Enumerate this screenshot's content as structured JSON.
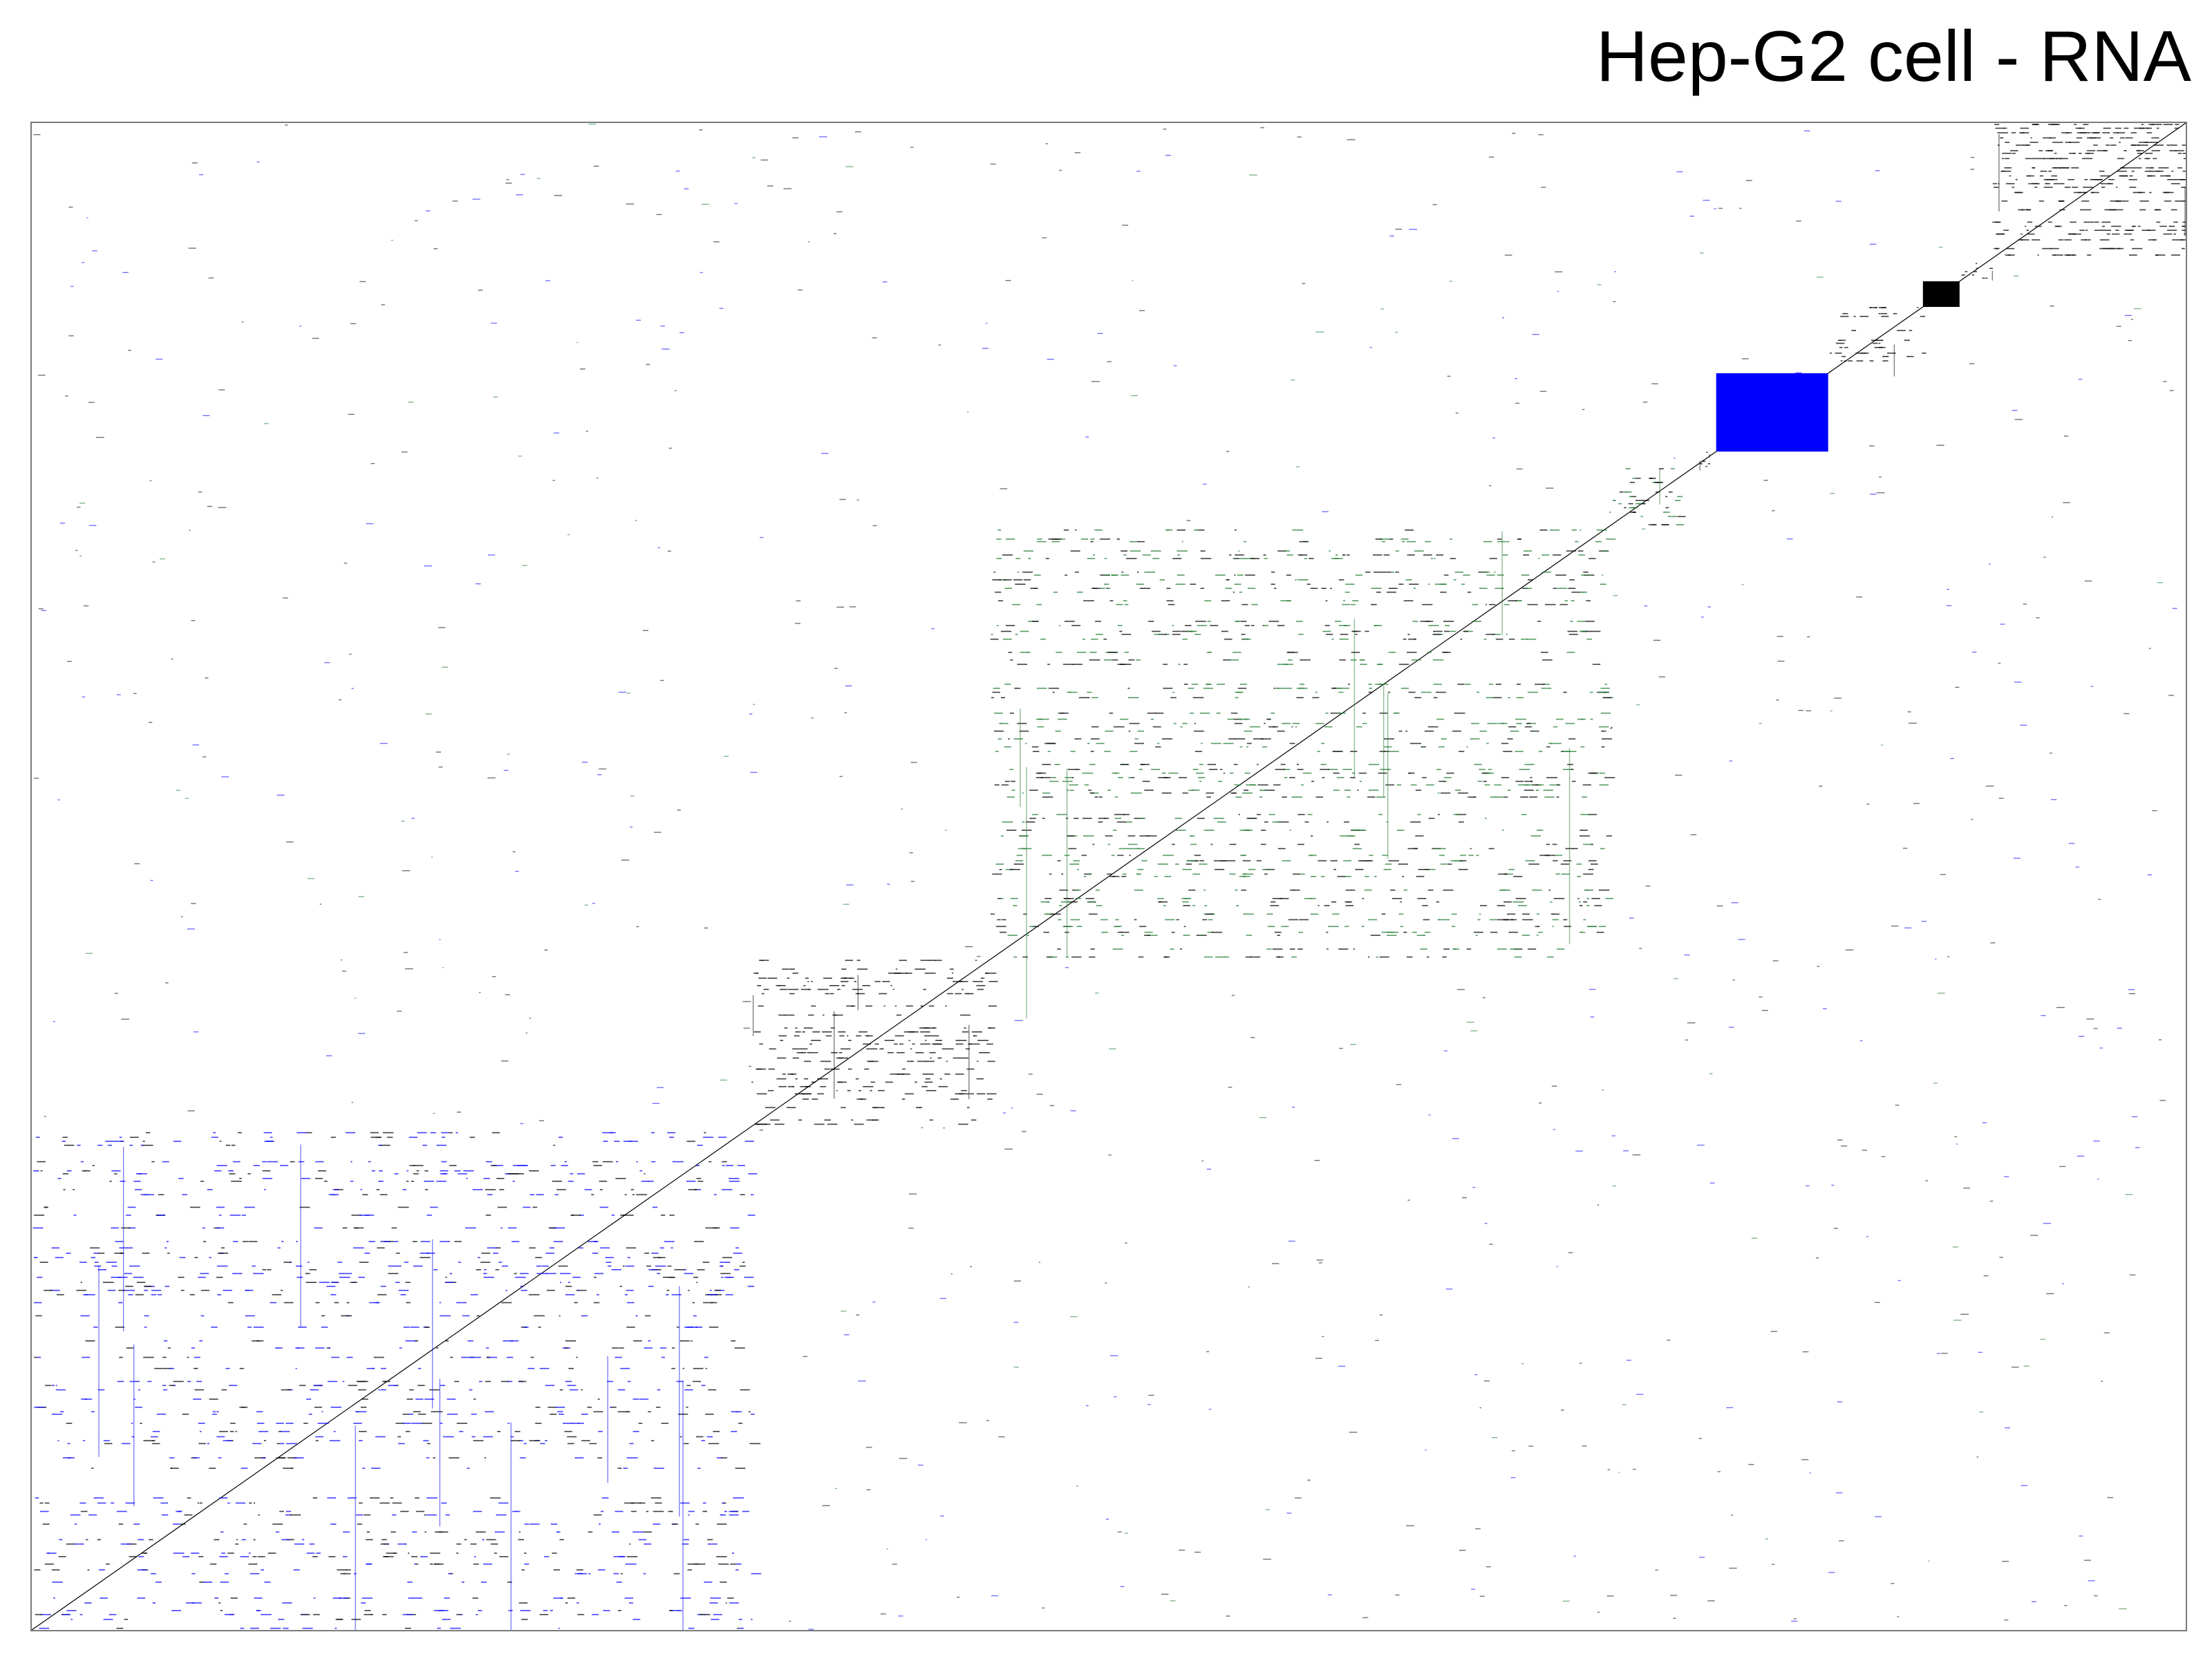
{
  "chart_data": {
    "type": "heatmap",
    "title": "Hep-G2 cell - RNA",
    "xlabel": "",
    "ylabel": "",
    "grid": false,
    "legend": "none",
    "axis_range": [
      0,
      1
    ],
    "colors": {
      "black": "#000000",
      "blue": "#0000ff",
      "green": "#1f7a2e",
      "frame": "#7a7a7a",
      "background": "#ffffff"
    },
    "blocks": [
      {
        "name": "block-1",
        "start": 0.0,
        "end": 0.334,
        "color": "blue",
        "density": 0.22
      },
      {
        "name": "block-2",
        "start": 0.334,
        "end": 0.445,
        "color": "black",
        "density": 0.45
      },
      {
        "name": "block-3",
        "start": 0.445,
        "end": 0.731,
        "color": "green",
        "density": 0.3
      },
      {
        "name": "block-4",
        "start": 0.731,
        "end": 0.771,
        "color": "green",
        "density": 0.55
      },
      {
        "name": "block-5",
        "start": 0.771,
        "end": 0.782,
        "color": "black",
        "density": 0.6
      },
      {
        "name": "block-6",
        "start": 0.782,
        "end": 0.834,
        "color": "blue",
        "density": 1.0
      },
      {
        "name": "block-7",
        "start": 0.834,
        "end": 0.878,
        "color": "black",
        "density": 0.7
      },
      {
        "name": "block-8",
        "start": 0.878,
        "end": 0.895,
        "color": "black",
        "density": 1.0
      },
      {
        "name": "block-9",
        "start": 0.895,
        "end": 0.91,
        "color": "black",
        "density": 0.7
      },
      {
        "name": "block-10",
        "start": 0.91,
        "end": 1.0,
        "color": "black",
        "density": 0.8
      }
    ]
  }
}
